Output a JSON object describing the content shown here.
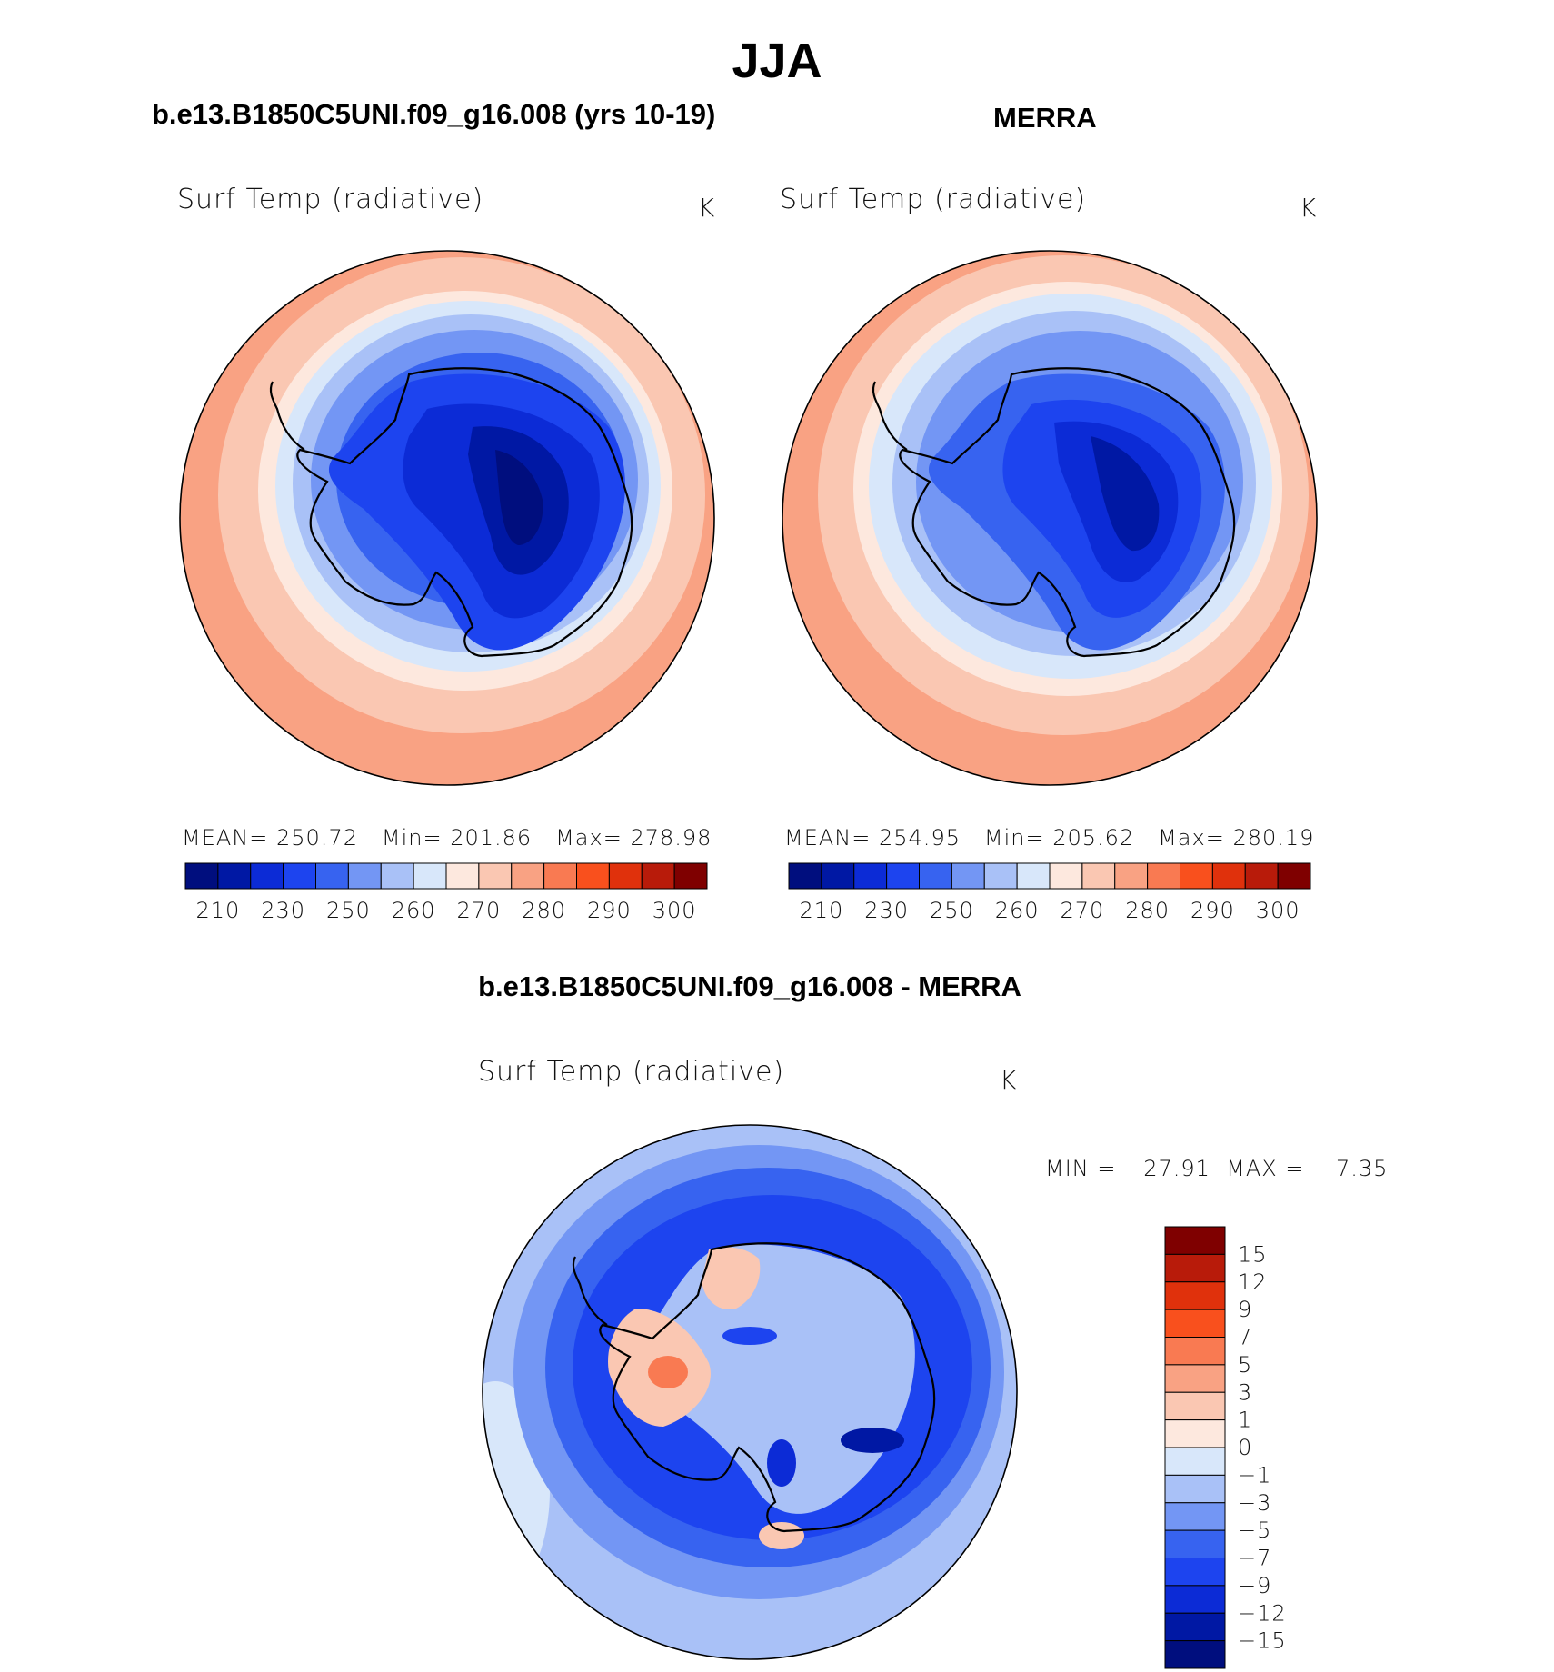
{
  "title": "JJA",
  "colors": {
    "abs_palette": [
      "#000e7e",
      "#0018a4",
      "#0c2bd6",
      "#1d44ef",
      "#3763f0",
      "#7396f4",
      "#a9c1f7",
      "#d8e7fa",
      "#fde8de",
      "#fac7b2",
      "#f9a283",
      "#f97a52",
      "#f9501d",
      "#e0310c",
      "#b81b0a",
      "#7f0000"
    ],
    "diff_palette": [
      "#000e7e",
      "#0018a4",
      "#0c2bd6",
      "#1d44ef",
      "#3763f0",
      "#7396f4",
      "#a9c1f7",
      "#d8e7fa",
      "#fde8de",
      "#fac7b2",
      "#f9a283",
      "#f97a52",
      "#f9501d",
      "#e0310c",
      "#b81b0a",
      "#7f0000"
    ],
    "coast": "#000000"
  },
  "panels": [
    {
      "id": "model",
      "heading": "b.e13.B1850C5UNI.f09_g16.008 (yrs 10-19)",
      "field": "Surf Temp (radiative)",
      "units": "K",
      "stats": {
        "mean_label": "MEAN=",
        "mean": "250.72",
        "min_label": "Min=",
        "min": "201.86",
        "max_label": "Max=",
        "max": "278.98"
      },
      "colorbar_ticks": [
        "210",
        "230",
        "250",
        "260",
        "270",
        "280",
        "290",
        "300"
      ]
    },
    {
      "id": "obs",
      "heading": "MERRA",
      "field": "Surf Temp (radiative)",
      "units": "K",
      "stats": {
        "mean_label": "MEAN=",
        "mean": "254.95",
        "min_label": "Min=",
        "min": "205.62",
        "max_label": "Max=",
        "max": "280.19"
      },
      "colorbar_ticks": [
        "210",
        "230",
        "250",
        "260",
        "270",
        "280",
        "290",
        "300"
      ]
    }
  ],
  "difference": {
    "heading": "b.e13.B1850C5UNI.f09_g16.008 - MERRA",
    "field": "Surf Temp (radiative)",
    "units": "K",
    "min_max_text": "MIN = −27.91  MAX =    7.35",
    "colorbar_ticks": [
      "15",
      "12",
      "9",
      "7",
      "5",
      "3",
      "1",
      "0",
      "−1",
      "−3",
      "−5",
      "−7",
      "−9",
      "−12",
      "−15"
    ]
  }
}
